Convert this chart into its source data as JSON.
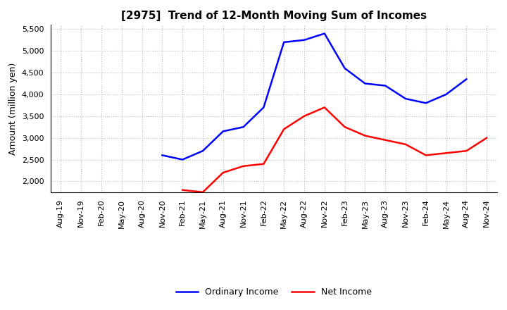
{
  "title": "[2975]  Trend of 12-Month Moving Sum of Incomes",
  "ylabel": "Amount (million yen)",
  "ylim": [
    1750,
    5600
  ],
  "yticks": [
    2000,
    2500,
    3000,
    3500,
    4000,
    4500,
    5000,
    5500
  ],
  "background_color": "#ffffff",
  "grid_color": "#bbbbbb",
  "ordinary_income_color": "#0000ff",
  "net_income_color": "#ff0000",
  "legend_labels": [
    "Ordinary Income",
    "Net Income"
  ],
  "x_labels": [
    "Aug-19",
    "Nov-19",
    "Feb-20",
    "May-20",
    "Aug-20",
    "Nov-20",
    "Feb-21",
    "May-21",
    "Aug-21",
    "Nov-21",
    "Feb-22",
    "May-22",
    "Aug-22",
    "Nov-22",
    "Feb-23",
    "May-23",
    "Aug-23",
    "Nov-23",
    "Feb-24",
    "May-24",
    "Aug-24",
    "Nov-24"
  ],
  "ordinary_income": [
    null,
    null,
    null,
    null,
    null,
    2600,
    2500,
    2700,
    3150,
    3250,
    3700,
    5200,
    5250,
    5400,
    4600,
    4250,
    4200,
    3900,
    3800,
    4000,
    4350,
    null
  ],
  "net_income": [
    null,
    null,
    null,
    null,
    null,
    null,
    1800,
    1750,
    2200,
    2350,
    2400,
    3200,
    3500,
    3700,
    3250,
    3050,
    2950,
    2850,
    2600,
    2650,
    2700,
    3000
  ],
  "title_fontsize": 11,
  "axis_fontsize": 8,
  "ylabel_fontsize": 9
}
